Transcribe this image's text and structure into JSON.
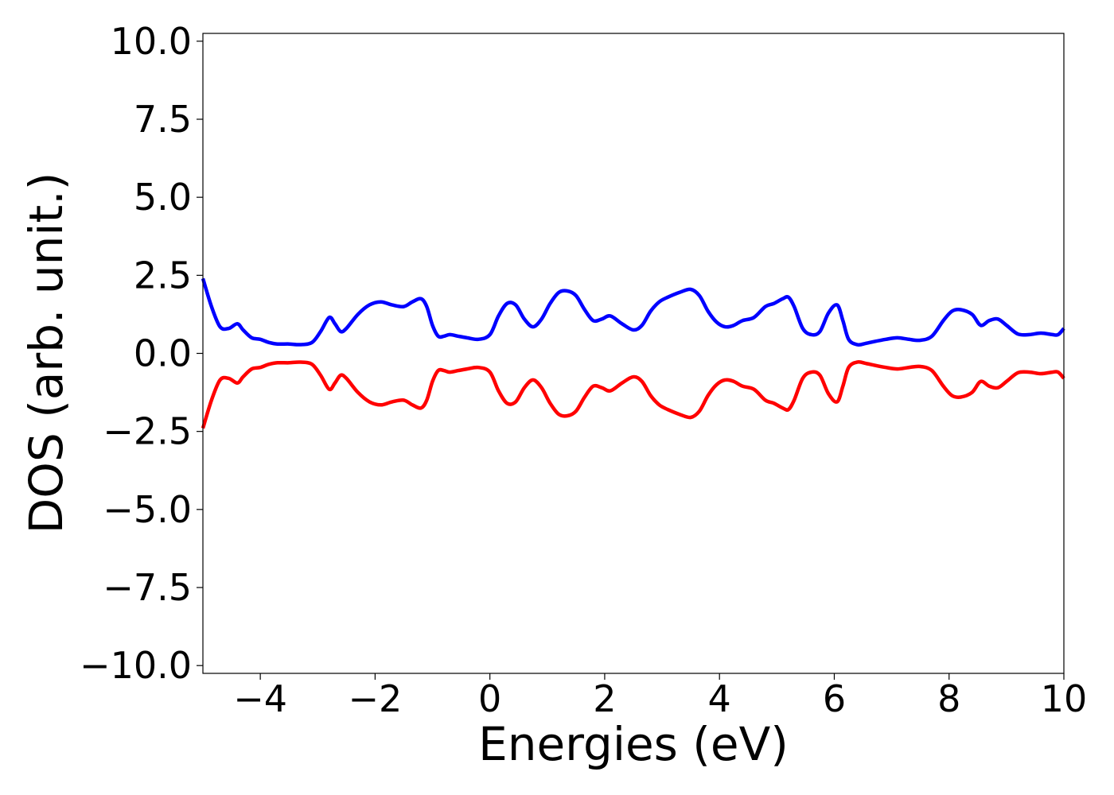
{
  "chart_data": {
    "type": "line",
    "title": "",
    "xlabel": "Energies (eV)",
    "ylabel": "DOS (arb. unit.)",
    "xlim": [
      -5,
      10
    ],
    "ylim": [
      -10.25,
      10.25
    ],
    "xticks": [
      -4,
      -2,
      0,
      2,
      4,
      6,
      8,
      10
    ],
    "xtick_labels": [
      "−4",
      "−2",
      "0",
      "2",
      "4",
      "6",
      "8",
      "10"
    ],
    "yticks": [
      10,
      7.5,
      5,
      2.5,
      0,
      -2.5,
      -5,
      -7.5,
      -10
    ],
    "ytick_labels": [
      "10.0",
      "7.5",
      "5.0",
      "2.5",
      "0.0",
      "−2.5",
      "−5.0",
      "−7.5",
      "−10.0"
    ],
    "grid": false,
    "legend": "none",
    "series": [
      {
        "color": "#0000ff",
        "x": [
          -5.0,
          -4.85,
          -4.7,
          -4.55,
          -4.4,
          -4.3,
          -4.15,
          -4.0,
          -3.85,
          -3.7,
          -3.5,
          -3.3,
          -3.1,
          -2.95,
          -2.8,
          -2.7,
          -2.6,
          -2.5,
          -2.3,
          -2.1,
          -1.9,
          -1.7,
          -1.5,
          -1.35,
          -1.2,
          -1.1,
          -1.0,
          -0.9,
          -0.8,
          -0.7,
          -0.55,
          -0.4,
          -0.2,
          0.0,
          0.15,
          0.3,
          0.45,
          0.6,
          0.75,
          0.9,
          1.05,
          1.2,
          1.35,
          1.5,
          1.65,
          1.8,
          1.95,
          2.1,
          2.3,
          2.5,
          2.65,
          2.8,
          2.95,
          3.1,
          3.3,
          3.5,
          3.65,
          3.8,
          3.95,
          4.1,
          4.25,
          4.4,
          4.6,
          4.8,
          4.95,
          5.1,
          5.2,
          5.3,
          5.45,
          5.6,
          5.75,
          5.9,
          6.05,
          6.15,
          6.25,
          6.4,
          6.55,
          6.7,
          6.9,
          7.1,
          7.3,
          7.5,
          7.7,
          7.9,
          8.05,
          8.2,
          8.4,
          8.55,
          8.7,
          8.85,
          9.0,
          9.2,
          9.4,
          9.6,
          9.8,
          9.9,
          10.0
        ],
        "y": [
          2.4,
          1.5,
          0.85,
          0.8,
          0.95,
          0.75,
          0.5,
          0.45,
          0.35,
          0.3,
          0.3,
          0.28,
          0.35,
          0.7,
          1.15,
          0.95,
          0.7,
          0.8,
          1.25,
          1.55,
          1.65,
          1.55,
          1.5,
          1.65,
          1.75,
          1.5,
          0.9,
          0.55,
          0.55,
          0.6,
          0.55,
          0.5,
          0.45,
          0.6,
          1.2,
          1.6,
          1.55,
          1.1,
          0.85,
          1.1,
          1.6,
          1.95,
          2.0,
          1.85,
          1.4,
          1.05,
          1.1,
          1.2,
          0.95,
          0.75,
          0.9,
          1.35,
          1.65,
          1.8,
          1.95,
          2.05,
          1.85,
          1.35,
          1.0,
          0.85,
          0.9,
          1.05,
          1.15,
          1.5,
          1.6,
          1.75,
          1.8,
          1.5,
          0.8,
          0.6,
          0.7,
          1.3,
          1.55,
          1.05,
          0.45,
          0.28,
          0.32,
          0.38,
          0.45,
          0.5,
          0.45,
          0.42,
          0.55,
          1.05,
          1.35,
          1.4,
          1.25,
          0.9,
          1.05,
          1.1,
          0.9,
          0.62,
          0.6,
          0.65,
          0.6,
          0.6,
          0.8
        ]
      },
      {
        "color": "#ff0000",
        "x": [
          -5.0,
          -4.85,
          -4.7,
          -4.55,
          -4.4,
          -4.3,
          -4.15,
          -4.0,
          -3.85,
          -3.7,
          -3.5,
          -3.3,
          -3.1,
          -2.95,
          -2.8,
          -2.7,
          -2.6,
          -2.5,
          -2.3,
          -2.1,
          -1.9,
          -1.7,
          -1.5,
          -1.35,
          -1.2,
          -1.1,
          -1.0,
          -0.9,
          -0.8,
          -0.7,
          -0.55,
          -0.4,
          -0.2,
          0.0,
          0.15,
          0.3,
          0.45,
          0.6,
          0.75,
          0.9,
          1.05,
          1.2,
          1.35,
          1.5,
          1.65,
          1.8,
          1.95,
          2.1,
          2.3,
          2.5,
          2.65,
          2.8,
          2.95,
          3.1,
          3.3,
          3.5,
          3.65,
          3.8,
          3.95,
          4.1,
          4.25,
          4.4,
          4.6,
          4.8,
          4.95,
          5.1,
          5.2,
          5.3,
          5.45,
          5.6,
          5.75,
          5.9,
          6.05,
          6.15,
          6.25,
          6.4,
          6.55,
          6.7,
          6.9,
          7.1,
          7.3,
          7.5,
          7.7,
          7.9,
          8.05,
          8.2,
          8.4,
          8.55,
          8.7,
          8.85,
          9.0,
          9.2,
          9.4,
          9.6,
          9.8,
          9.9,
          10.0
        ],
        "y": [
          -2.4,
          -1.5,
          -0.85,
          -0.8,
          -0.95,
          -0.75,
          -0.5,
          -0.45,
          -0.35,
          -0.3,
          -0.3,
          -0.28,
          -0.35,
          -0.7,
          -1.15,
          -0.95,
          -0.7,
          -0.8,
          -1.25,
          -1.55,
          -1.65,
          -1.55,
          -1.5,
          -1.65,
          -1.75,
          -1.5,
          -0.9,
          -0.55,
          -0.55,
          -0.6,
          -0.55,
          -0.5,
          -0.45,
          -0.6,
          -1.2,
          -1.6,
          -1.55,
          -1.1,
          -0.85,
          -1.1,
          -1.6,
          -1.95,
          -2.0,
          -1.85,
          -1.4,
          -1.05,
          -1.1,
          -1.2,
          -0.95,
          -0.75,
          -0.9,
          -1.35,
          -1.65,
          -1.8,
          -1.95,
          -2.05,
          -1.85,
          -1.35,
          -1.0,
          -0.85,
          -0.9,
          -1.05,
          -1.15,
          -1.5,
          -1.6,
          -1.75,
          -1.8,
          -1.5,
          -0.8,
          -0.6,
          -0.7,
          -1.3,
          -1.55,
          -1.05,
          -0.45,
          -0.28,
          -0.32,
          -0.38,
          -0.45,
          -0.5,
          -0.45,
          -0.42,
          -0.55,
          -1.05,
          -1.35,
          -1.4,
          -1.25,
          -0.9,
          -1.05,
          -1.1,
          -0.9,
          -0.62,
          -0.6,
          -0.65,
          -0.6,
          -0.6,
          -0.8
        ]
      }
    ]
  }
}
